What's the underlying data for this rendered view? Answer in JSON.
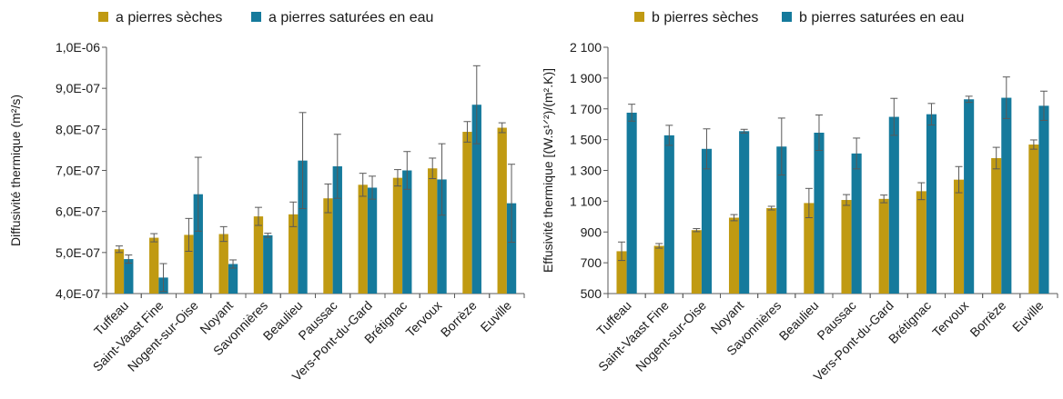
{
  "categories": [
    "Tuffeau",
    "Saint-Vaast Fine",
    "Nogent-sur-Oise",
    "Noyant",
    "Savonnières",
    "Beaulieu",
    "Paussac",
    "Vers-Pont-du-Gard",
    "Brétignac",
    "Tervoux",
    "Borrèze",
    "Euville"
  ],
  "colors": {
    "dry": "#C09A12",
    "wet": "#157A9C",
    "axis": "#595959",
    "error": "#595959"
  },
  "chart_data": [
    {
      "type": "bar",
      "ylabel": "Diffusivité thermique (m²/s)",
      "ylim": [
        4e-07,
        1e-06
      ],
      "yticks": [
        4e-07,
        5e-07,
        6e-07,
        7e-07,
        8e-07,
        9e-07,
        1e-06
      ],
      "ytick_labels": [
        "4,0E-07",
        "5,0E-07",
        "6,0E-07",
        "7,0E-07",
        "8,0E-07",
        "9,0E-07",
        "1,0E-06"
      ],
      "legend_position": "top",
      "grid": false,
      "series": [
        {
          "name": "a pierres sèches",
          "color_key": "dry",
          "values": [
            5.08e-07,
            5.36e-07,
            5.43e-07,
            5.45e-07,
            5.88e-07,
            5.93e-07,
            6.32e-07,
            6.65e-07,
            6.82e-07,
            7.05e-07,
            7.94e-07,
            8.04e-07
          ],
          "errors": [
            8e-09,
            1e-08,
            4e-08,
            1.8e-08,
            2.2e-08,
            3e-08,
            3.5e-08,
            2.8e-08,
            2e-08,
            2.5e-08,
            2.5e-08,
            1.2e-08
          ]
        },
        {
          "name": "a pierres saturées en eau",
          "color_key": "wet",
          "values": [
            4.84e-07,
            4.39e-07,
            6.42e-07,
            4.72e-07,
            5.42e-07,
            7.24e-07,
            7.1e-07,
            6.58e-07,
            7e-07,
            6.78e-07,
            8.6e-07,
            6.2e-07
          ],
          "errors": [
            1e-08,
            3.4e-08,
            9e-08,
            1e-08,
            5e-09,
            1.17e-07,
            7.8e-08,
            2.8e-08,
            4.6e-08,
            8.7e-08,
            9.5e-08,
            9.5e-08
          ]
        }
      ]
    },
    {
      "type": "bar",
      "ylabel": "Effusivité thermique [(W.s¹ᐟ²)/(m².K)]",
      "ylim": [
        500,
        2100
      ],
      "yticks": [
        500,
        700,
        900,
        1100,
        1300,
        1500,
        1700,
        1900,
        2100
      ],
      "ytick_labels": [
        "500",
        "700",
        "900",
        "1 100",
        "1 300",
        "1 500",
        "1 700",
        "1 900",
        "2 100"
      ],
      "legend_position": "top",
      "grid": false,
      "series": [
        {
          "name": "b pierres sèches",
          "color_key": "dry",
          "values": [
            775,
            810,
            912,
            993,
            1055,
            1088,
            1108,
            1115,
            1165,
            1240,
            1380,
            1468
          ],
          "errors": [
            60,
            15,
            10,
            20,
            12,
            95,
            35,
            25,
            55,
            85,
            70,
            30
          ]
        },
        {
          "name": "b pierres saturées en eau",
          "color_key": "wet",
          "values": [
            1675,
            1528,
            1440,
            1555,
            1455,
            1545,
            1410,
            1648,
            1665,
            1762,
            1772,
            1720
          ],
          "errors": [
            55,
            65,
            130,
            12,
            185,
            115,
            100,
            120,
            70,
            20,
            135,
            95
          ]
        }
      ]
    }
  ]
}
